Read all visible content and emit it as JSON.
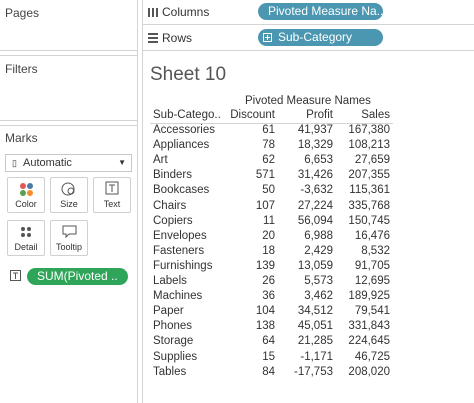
{
  "panels": {
    "pages": "Pages",
    "filters": "Filters",
    "marks": "Marks"
  },
  "marks": {
    "type": "Automatic",
    "buttons": [
      "Color",
      "Size",
      "Text",
      "Detail",
      "Tooltip"
    ],
    "pill": "SUM(Pivoted .."
  },
  "shelves": {
    "columns": {
      "label": "Columns",
      "pill": "Pivoted Measure Na.."
    },
    "rows": {
      "label": "Rows",
      "pill": "Sub-Category"
    }
  },
  "sheet": {
    "title": "Sheet 10"
  },
  "table": {
    "group_header": "Pivoted Measure Names",
    "columns": [
      "Sub-Catego..",
      "Discount",
      "Profit",
      "Sales"
    ],
    "rows": [
      [
        "Accessories",
        "61",
        "41,937",
        "167,380"
      ],
      [
        "Appliances",
        "78",
        "18,329",
        "108,213"
      ],
      [
        "Art",
        "62",
        "6,653",
        "27,659"
      ],
      [
        "Binders",
        "571",
        "31,426",
        "207,355"
      ],
      [
        "Bookcases",
        "50",
        "-3,632",
        "115,361"
      ],
      [
        "Chairs",
        "107",
        "27,224",
        "335,768"
      ],
      [
        "Copiers",
        "11",
        "56,094",
        "150,745"
      ],
      [
        "Envelopes",
        "20",
        "6,988",
        "16,476"
      ],
      [
        "Fasteners",
        "18",
        "2,429",
        "8,532"
      ],
      [
        "Furnishings",
        "139",
        "13,059",
        "91,705"
      ],
      [
        "Labels",
        "26",
        "5,573",
        "12,695"
      ],
      [
        "Machines",
        "36",
        "3,462",
        "189,925"
      ],
      [
        "Paper",
        "104",
        "34,512",
        "79,541"
      ],
      [
        "Phones",
        "138",
        "45,051",
        "331,843"
      ],
      [
        "Storage",
        "64",
        "21,285",
        "224,645"
      ],
      [
        "Supplies",
        "15",
        "-1,171",
        "46,725"
      ],
      [
        "Tables",
        "84",
        "-17,753",
        "208,020"
      ]
    ]
  }
}
